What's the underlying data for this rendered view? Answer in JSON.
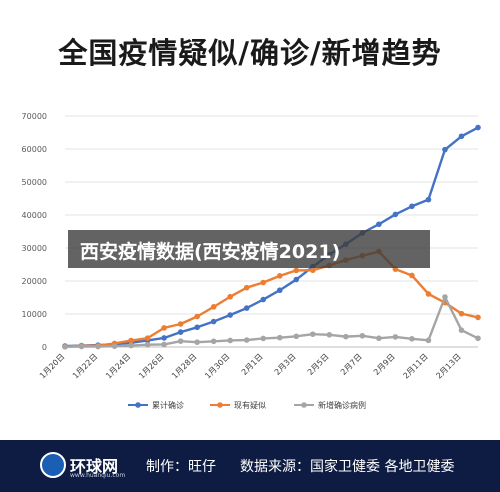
{
  "title": "全国疫情疑似/确诊/新增趋势",
  "overlay_text": "西安疫情数据(西安疫情2021)",
  "footer": {
    "logo_text": "环球网",
    "logo_url": "www.huanqiu.com",
    "producer": "制作：旺仔",
    "source": "数据来源：国家卫健委 各地卫健委"
  },
  "chart_data": {
    "type": "line",
    "x": [
      "1月20日",
      "1月21日",
      "1月22日",
      "1月23日",
      "1月24日",
      "1月25日",
      "1月26日",
      "1月27日",
      "1月28日",
      "1月29日",
      "1月30日",
      "1月31日",
      "2月1日",
      "2月2日",
      "2月3日",
      "2月4日",
      "2月5日",
      "2月6日",
      "2月7日",
      "2月8日",
      "2月9日",
      "2月10日",
      "2月11日",
      "2月12日",
      "2月13日",
      "2月14日"
    ],
    "x_tick_labels": [
      "1月20日",
      "1月22日",
      "1月24日",
      "1月26日",
      "1月28日",
      "1月30日",
      "2月1日",
      "2月3日",
      "2月5日",
      "2月7日",
      "2月9日",
      "2月11日",
      "2月13日"
    ],
    "ylim": [
      0,
      70000
    ],
    "yticks": [
      0,
      10000,
      20000,
      30000,
      40000,
      50000,
      60000,
      70000
    ],
    "grid": true,
    "legend_position": "bottom",
    "series": [
      {
        "name": "累计确诊",
        "color": "#4472c4",
        "values": [
          291,
          440,
          571,
          830,
          1287,
          1975,
          2744,
          4515,
          5974,
          7711,
          9692,
          11791,
          14380,
          17205,
          20438,
          24324,
          28018,
          31161,
          34546,
          37198,
          40171,
          42638,
          44653,
          59804,
          63851,
          66492
        ]
      },
      {
        "name": "现有疑似",
        "color": "#ed7d31",
        "values": [
          54,
          393,
          393,
          1072,
          1965,
          2684,
          5794,
          6973,
          9239,
          12167,
          15238,
          17988,
          19544,
          21558,
          23214,
          23260,
          24702,
          26359,
          27657,
          28942,
          23589,
          21675,
          16067,
          13435,
          10109,
          8969
        ]
      },
      {
        "name": "新增确诊病例",
        "color": "#a5a5a5",
        "values": [
          77,
          149,
          131,
          259,
          444,
          688,
          769,
          1771,
          1459,
          1737,
          1982,
          2102,
          2590,
          2829,
          3235,
          3887,
          3694,
          3143,
          3399,
          2656,
          3062,
          2478,
          2015,
          15152,
          5090,
          2641
        ]
      }
    ]
  }
}
